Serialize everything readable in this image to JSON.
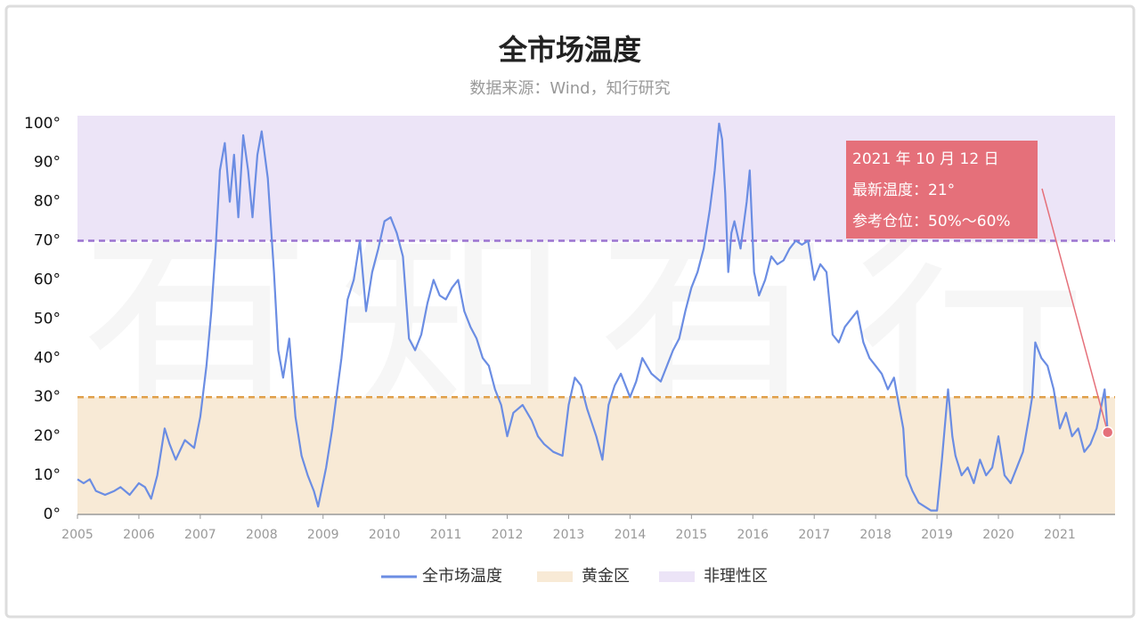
{
  "chart_data": {
    "type": "line",
    "title": "全市场温度",
    "subtitle": "数据来源：Wind，知行研究",
    "watermark": "有知有行",
    "xlim": [
      2005,
      2021.9
    ],
    "xticks": [
      2005,
      2006,
      2007,
      2008,
      2009,
      2010,
      2011,
      2012,
      2013,
      2014,
      2015,
      2016,
      2017,
      2018,
      2019,
      2020,
      2021
    ],
    "ylim": [
      0,
      102
    ],
    "yticks": [
      {
        "value": 0,
        "label": "0°"
      },
      {
        "value": 10,
        "label": "10°"
      },
      {
        "value": 20,
        "label": "20°"
      },
      {
        "value": 30,
        "label": "30°"
      },
      {
        "value": 40,
        "label": "40°"
      },
      {
        "value": 50,
        "label": "50°"
      },
      {
        "value": 60,
        "label": "60°"
      },
      {
        "value": 70,
        "label": "70°"
      },
      {
        "value": 80,
        "label": "80°"
      },
      {
        "value": 90,
        "label": "90°"
      },
      {
        "value": {
          "value": 100,
          "label": "100°"
        },
        "label": "100°"
      }
    ],
    "zones": [
      {
        "name": "黄金区",
        "from": 0,
        "to": 30,
        "color": "#f8ead6",
        "line_color": "#e0a04a"
      },
      {
        "name": "非理性区",
        "from": 70,
        "to": 102,
        "color": "#ece4f7",
        "line_color": "#9b74d0"
      }
    ],
    "series": [
      {
        "name": "全市场温度",
        "color": "#6b8de3",
        "x": [
          2005.0,
          2005.1,
          2005.2,
          2005.3,
          2005.45,
          2005.6,
          2005.7,
          2005.85,
          2006.0,
          2006.1,
          2006.2,
          2006.3,
          2006.42,
          2006.5,
          2006.6,
          2006.75,
          2006.9,
          2007.0,
          2007.1,
          2007.18,
          2007.25,
          2007.32,
          2007.4,
          2007.48,
          2007.55,
          2007.62,
          2007.7,
          2007.78,
          2007.85,
          2007.93,
          2008.0,
          2008.1,
          2008.2,
          2008.27,
          2008.35,
          2008.45,
          2008.55,
          2008.65,
          2008.75,
          2008.85,
          2008.92,
          2009.05,
          2009.15,
          2009.3,
          2009.4,
          2009.5,
          2009.6,
          2009.7,
          2009.8,
          2009.9,
          2010.0,
          2010.1,
          2010.2,
          2010.3,
          2010.4,
          2010.5,
          2010.6,
          2010.7,
          2010.8,
          2010.9,
          2011.0,
          2011.1,
          2011.2,
          2011.3,
          2011.4,
          2011.5,
          2011.6,
          2011.7,
          2011.8,
          2011.9,
          2012.0,
          2012.1,
          2012.25,
          2012.4,
          2012.5,
          2012.6,
          2012.75,
          2012.9,
          2013.0,
          2013.1,
          2013.2,
          2013.3,
          2013.45,
          2013.55,
          2013.65,
          2013.75,
          2013.85,
          2014.0,
          2014.1,
          2014.2,
          2014.35,
          2014.5,
          2014.6,
          2014.7,
          2014.8,
          2014.9,
          2015.0,
          2015.1,
          2015.2,
          2015.3,
          2015.38,
          2015.45,
          2015.5,
          2015.55,
          2015.6,
          2015.65,
          2015.7,
          2015.8,
          2015.9,
          2015.95,
          2016.02,
          2016.1,
          2016.2,
          2016.3,
          2016.4,
          2016.5,
          2016.6,
          2016.7,
          2016.8,
          2016.9,
          2017.0,
          2017.1,
          2017.2,
          2017.3,
          2017.4,
          2017.5,
          2017.6,
          2017.7,
          2017.8,
          2017.9,
          2018.0,
          2018.1,
          2018.2,
          2018.3,
          2018.38,
          2018.45,
          2018.5,
          2018.6,
          2018.7,
          2018.8,
          2018.9,
          2019.0,
          2019.08,
          2019.18,
          2019.25,
          2019.3,
          2019.4,
          2019.5,
          2019.6,
          2019.7,
          2019.8,
          2019.9,
          2020.0,
          2020.1,
          2020.2,
          2020.3,
          2020.4,
          2020.5,
          2020.55,
          2020.6,
          2020.7,
          2020.8,
          2020.9,
          2021.0,
          2021.1,
          2021.2,
          2021.3,
          2021.4,
          2021.5,
          2021.6,
          2021.68,
          2021.73,
          2021.78
        ],
        "values": [
          9,
          8,
          9,
          6,
          5,
          6,
          7,
          5,
          8,
          7,
          4,
          10,
          22,
          18,
          14,
          19,
          17,
          25,
          38,
          52,
          68,
          88,
          95,
          80,
          92,
          76,
          97,
          88,
          76,
          92,
          98,
          86,
          62,
          42,
          35,
          45,
          25,
          15,
          10,
          6,
          2,
          12,
          22,
          40,
          55,
          60,
          70,
          52,
          62,
          68,
          75,
          76,
          72,
          66,
          45,
          42,
          46,
          54,
          60,
          56,
          55,
          58,
          60,
          52,
          48,
          45,
          40,
          38,
          32,
          28,
          20,
          26,
          28,
          24,
          20,
          18,
          16,
          15,
          28,
          35,
          33,
          27,
          20,
          14,
          28,
          33,
          36,
          30,
          34,
          40,
          36,
          34,
          38,
          42,
          45,
          52,
          58,
          62,
          68,
          78,
          88,
          100,
          96,
          82,
          62,
          72,
          75,
          68,
          80,
          88,
          62,
          56,
          60,
          66,
          64,
          65,
          68,
          70,
          69,
          70,
          60,
          64,
          62,
          46,
          44,
          48,
          50,
          52,
          44,
          40,
          38,
          36,
          32,
          35,
          28,
          22,
          10,
          6,
          3,
          2,
          1,
          1,
          14,
          32,
          20,
          15,
          10,
          12,
          8,
          14,
          10,
          12,
          20,
          10,
          8,
          12,
          16,
          25,
          30,
          44,
          40,
          38,
          32,
          22,
          26,
          20,
          22,
          16,
          18,
          22,
          28,
          32,
          21
        ]
      }
    ],
    "annotation": [
      "2021 年 10 月 12 日",
      "最新温度：21°",
      "参考仓位：50%～60%"
    ]
  }
}
